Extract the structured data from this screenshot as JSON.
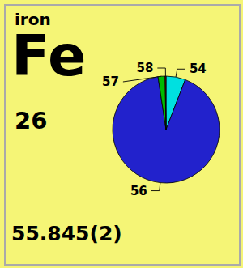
{
  "chart_data": {
    "type": "pie",
    "categories": [
      "54",
      "56",
      "57",
      "58"
    ],
    "values": [
      5.845,
      91.754,
      2.119,
      0.282
    ],
    "colors": [
      "#00e0e0",
      "#2222cc",
      "#00bb00",
      "#880000"
    ],
    "annotations": [
      "iron",
      "Fe",
      "26",
      "55.845(2)"
    ]
  }
}
